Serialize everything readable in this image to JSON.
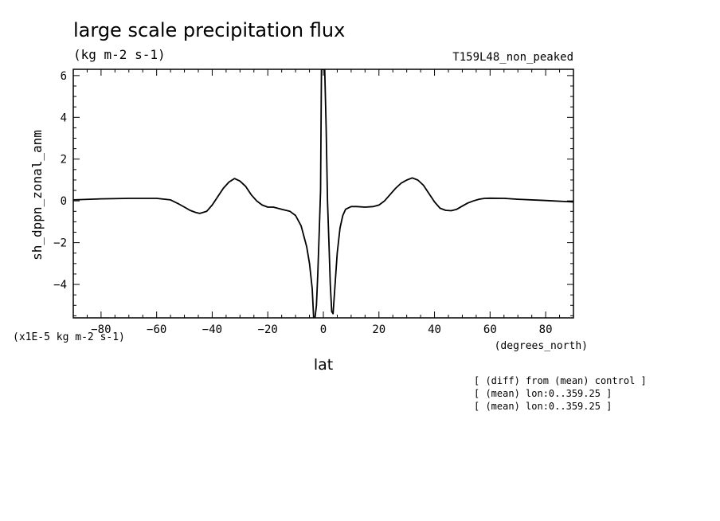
{
  "chart_data": {
    "type": "line",
    "title": "large scale precipitation flux",
    "subtitle": "(kg m-2 s-1)",
    "run_label": "T159L48_non_peaked",
    "ylabel": "sh_dppn_zonal_anm",
    "xlabel": "lat",
    "xunits": "(degrees_north)",
    "yscale_note": "(x1E-5 kg m-2 s-1)",
    "xlim": [
      -90,
      90
    ],
    "ylim": [
      -5.6,
      6.3
    ],
    "xticks": [
      -80,
      -60,
      -40,
      -20,
      0,
      20,
      40,
      60,
      80
    ],
    "yticks": [
      -4,
      -2,
      0,
      2,
      4,
      6
    ],
    "grid": false,
    "legend": "none",
    "line_color": "#000000",
    "series": [
      {
        "x": [
          -90,
          -80,
          -70,
          -60,
          -55,
          -52,
          -50,
          -48,
          -46,
          -44.5,
          -42,
          -40,
          -38,
          -36,
          -34,
          -32,
          -30,
          -28,
          -26,
          -24,
          -22,
          -20,
          -18,
          -15,
          -12,
          -10,
          -8,
          -6,
          -5,
          -4,
          -3.5,
          -3,
          -2.5,
          -2,
          -1.5,
          -1,
          -0.7,
          0,
          0.5,
          1,
          1.5,
          2,
          2.5,
          3,
          3.5,
          4,
          5,
          6,
          7,
          8,
          10,
          12,
          15,
          18,
          20,
          22,
          24,
          26,
          28,
          30,
          32,
          34,
          36,
          38,
          40,
          42,
          44,
          46,
          48,
          50,
          52,
          54,
          56,
          58,
          60,
          65,
          70,
          80,
          90
        ],
        "y": [
          0.05,
          0.1,
          0.12,
          0.12,
          0.05,
          -0.15,
          -0.3,
          -0.45,
          -0.55,
          -0.6,
          -0.5,
          -0.2,
          0.2,
          0.6,
          0.9,
          1.07,
          0.95,
          0.7,
          0.3,
          0.0,
          -0.2,
          -0.3,
          -0.3,
          -0.4,
          -0.5,
          -0.7,
          -1.2,
          -2.2,
          -3.0,
          -4.2,
          -5.6,
          -5.6,
          -5.0,
          -3.5,
          -1.5,
          0.5,
          6.3,
          6.3,
          6.3,
          3.5,
          0.0,
          -2.0,
          -4.0,
          -5.3,
          -5.4,
          -4.4,
          -2.5,
          -1.3,
          -0.7,
          -0.4,
          -0.27,
          -0.27,
          -0.3,
          -0.27,
          -0.2,
          0.0,
          0.3,
          0.6,
          0.85,
          1.0,
          1.1,
          1.0,
          0.75,
          0.35,
          -0.05,
          -0.35,
          -0.45,
          -0.47,
          -0.4,
          -0.25,
          -0.1,
          0.0,
          0.08,
          0.12,
          0.13,
          0.12,
          0.08,
          0.02,
          -0.05
        ]
      }
    ]
  },
  "annotations": [
    "[ (diff) from (mean) control ]",
    "[ (mean) lon:0..359.25 ]",
    "[ (mean) lon:0..359.25 ]"
  ]
}
